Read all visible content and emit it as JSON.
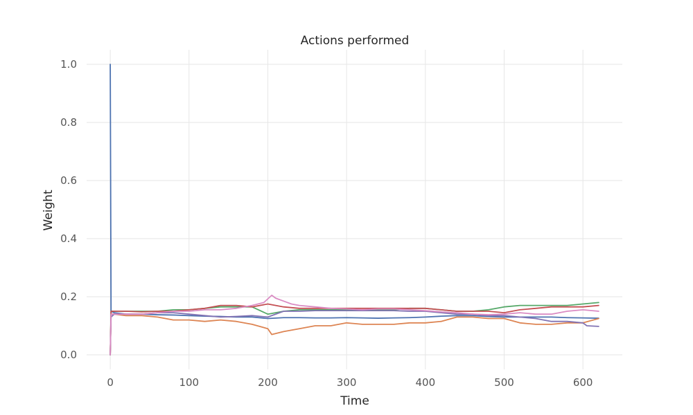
{
  "chart_data": {
    "type": "line",
    "title": "Actions performed",
    "xlabel": "Time",
    "ylabel": "Weight",
    "xlim": [
      -30,
      650
    ],
    "ylim": [
      -0.05,
      1.05
    ],
    "xticks": [
      0,
      100,
      200,
      300,
      400,
      500,
      600
    ],
    "yticks": [
      0.0,
      0.2,
      0.4,
      0.6,
      0.8,
      1.0
    ],
    "xtick_labels": [
      "0",
      "100",
      "200",
      "300",
      "400",
      "500",
      "600"
    ],
    "ytick_labels": [
      "0.0",
      "0.2",
      "0.4",
      "0.6",
      "0.8",
      "1.0"
    ],
    "grid": true,
    "legend": "none",
    "series": [
      {
        "color": "#4c72b0",
        "x": [
          0,
          1,
          5,
          20,
          40,
          60,
          80,
          100,
          120,
          140,
          160,
          180,
          200,
          220,
          240,
          260,
          280,
          300,
          320,
          340,
          360,
          380,
          400,
          420,
          440,
          460,
          480,
          500,
          520,
          540,
          560,
          580,
          600,
          620
        ],
        "y": [
          1.0,
          0.15,
          0.145,
          0.14,
          0.14,
          0.138,
          0.137,
          0.135,
          0.133,
          0.132,
          0.13,
          0.13,
          0.125,
          0.128,
          0.128,
          0.127,
          0.127,
          0.128,
          0.127,
          0.126,
          0.127,
          0.128,
          0.13,
          0.133,
          0.135,
          0.135,
          0.132,
          0.13,
          0.13,
          0.13,
          0.13,
          0.128,
          0.127,
          0.126
        ]
      },
      {
        "color": "#dd8452",
        "x": [
          0,
          1,
          5,
          20,
          40,
          60,
          80,
          100,
          120,
          140,
          160,
          180,
          200,
          205,
          220,
          240,
          260,
          280,
          300,
          320,
          340,
          360,
          380,
          400,
          420,
          440,
          460,
          480,
          500,
          520,
          540,
          560,
          580,
          600,
          620
        ],
        "y": [
          0.0,
          0.14,
          0.14,
          0.135,
          0.135,
          0.13,
          0.12,
          0.12,
          0.115,
          0.12,
          0.115,
          0.105,
          0.09,
          0.07,
          0.08,
          0.09,
          0.1,
          0.1,
          0.11,
          0.105,
          0.105,
          0.105,
          0.11,
          0.11,
          0.115,
          0.13,
          0.13,
          0.125,
          0.125,
          0.11,
          0.105,
          0.105,
          0.11,
          0.11,
          0.125
        ]
      },
      {
        "color": "#55a868",
        "x": [
          0,
          1,
          5,
          20,
          40,
          60,
          80,
          100,
          120,
          140,
          160,
          180,
          200,
          220,
          240,
          260,
          280,
          300,
          320,
          340,
          360,
          380,
          400,
          420,
          440,
          460,
          480,
          500,
          520,
          540,
          560,
          580,
          600,
          620
        ],
        "y": [
          0.0,
          0.15,
          0.15,
          0.15,
          0.15,
          0.15,
          0.155,
          0.155,
          0.16,
          0.165,
          0.165,
          0.165,
          0.14,
          0.15,
          0.155,
          0.155,
          0.155,
          0.155,
          0.155,
          0.155,
          0.155,
          0.16,
          0.16,
          0.155,
          0.15,
          0.15,
          0.155,
          0.165,
          0.17,
          0.17,
          0.17,
          0.17,
          0.175,
          0.18
        ]
      },
      {
        "color": "#c44e52",
        "x": [
          0,
          1,
          5,
          20,
          40,
          60,
          80,
          100,
          120,
          140,
          160,
          180,
          200,
          220,
          240,
          260,
          280,
          300,
          320,
          340,
          360,
          380,
          400,
          420,
          440,
          460,
          480,
          500,
          520,
          540,
          560,
          580,
          600,
          620
        ],
        "y": [
          0.0,
          0.15,
          0.15,
          0.15,
          0.148,
          0.15,
          0.15,
          0.155,
          0.16,
          0.17,
          0.17,
          0.165,
          0.175,
          0.165,
          0.16,
          0.16,
          0.16,
          0.16,
          0.16,
          0.16,
          0.16,
          0.16,
          0.16,
          0.155,
          0.15,
          0.15,
          0.15,
          0.145,
          0.155,
          0.16,
          0.165,
          0.165,
          0.165,
          0.17
        ]
      },
      {
        "color": "#8172b3",
        "x": [
          0,
          1,
          5,
          20,
          40,
          60,
          80,
          100,
          120,
          140,
          160,
          180,
          200,
          220,
          240,
          260,
          280,
          300,
          320,
          340,
          360,
          380,
          400,
          420,
          440,
          460,
          480,
          500,
          520,
          540,
          560,
          580,
          600,
          605,
          620
        ],
        "y": [
          0.0,
          0.13,
          0.14,
          0.14,
          0.14,
          0.145,
          0.145,
          0.14,
          0.135,
          0.13,
          0.132,
          0.135,
          0.13,
          0.15,
          0.15,
          0.152,
          0.152,
          0.152,
          0.152,
          0.152,
          0.152,
          0.15,
          0.15,
          0.145,
          0.14,
          0.14,
          0.135,
          0.135,
          0.13,
          0.125,
          0.115,
          0.115,
          0.11,
          0.1,
          0.098
        ]
      },
      {
        "color": "#da8bc3",
        "x": [
          0,
          1,
          5,
          20,
          40,
          60,
          80,
          100,
          120,
          140,
          160,
          180,
          195,
          205,
          210,
          220,
          230,
          240,
          260,
          280,
          300,
          320,
          340,
          360,
          380,
          400,
          420,
          440,
          460,
          480,
          500,
          520,
          540,
          560,
          580,
          600,
          620
        ],
        "y": [
          0.0,
          0.14,
          0.14,
          0.14,
          0.14,
          0.145,
          0.15,
          0.15,
          0.155,
          0.155,
          0.16,
          0.17,
          0.18,
          0.205,
          0.195,
          0.185,
          0.175,
          0.17,
          0.165,
          0.16,
          0.158,
          0.155,
          0.158,
          0.158,
          0.155,
          0.152,
          0.148,
          0.145,
          0.14,
          0.138,
          0.14,
          0.145,
          0.14,
          0.14,
          0.15,
          0.155,
          0.15
        ]
      }
    ]
  }
}
